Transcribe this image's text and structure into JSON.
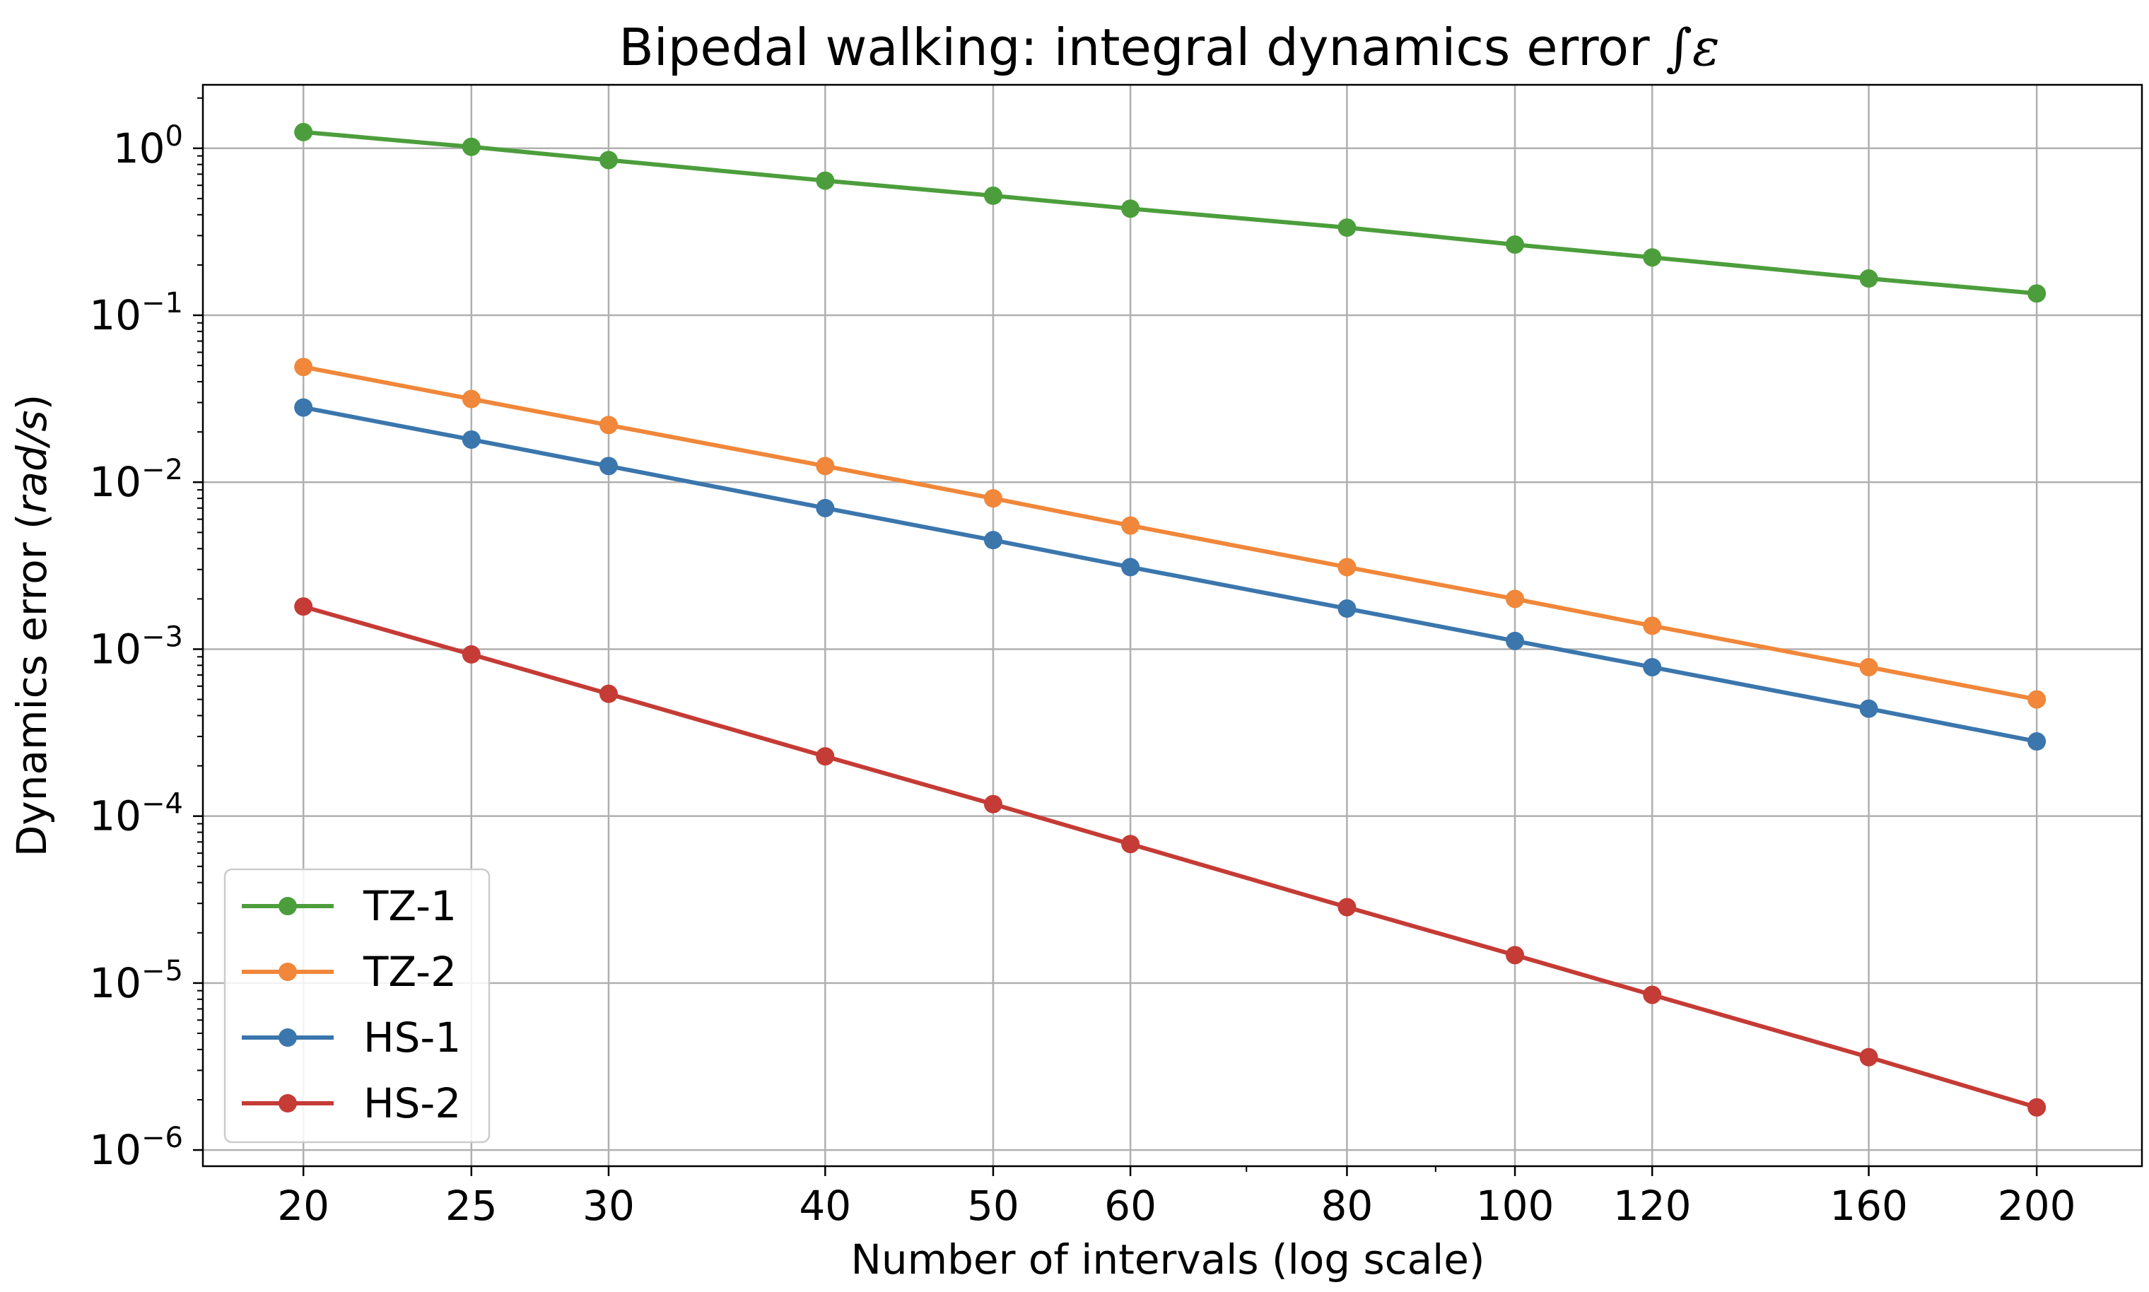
{
  "chart_data": {
    "type": "line",
    "title": "Bipedal walking: integral dynamics error ",
    "title_symbol": "∫ε",
    "xlabel": "Number of intervals (log scale)",
    "ylabel_prefix": "Dynamics error (",
    "ylabel_unit": "rad/s",
    "ylabel_suffix": ")",
    "xscale": "log",
    "yscale": "log",
    "xlim": [
      17.5,
      230
    ],
    "ylim": [
      8e-07,
      2.4
    ],
    "grid": true,
    "legend_position": "lower-left",
    "x": [
      20,
      25,
      30,
      40,
      50,
      60,
      80,
      100,
      120,
      160,
      200
    ],
    "x_tick_labels": [
      "20",
      "25",
      "30",
      "40",
      "50",
      "60",
      "80",
      "100",
      "120",
      "160",
      "200"
    ],
    "y_ticks": [
      {
        "value": 1,
        "base": "10",
        "exp": "0"
      },
      {
        "value": 0.1,
        "base": "10",
        "exp": "−1"
      },
      {
        "value": 0.01,
        "base": "10",
        "exp": "−2"
      },
      {
        "value": 0.001,
        "base": "10",
        "exp": "−3"
      },
      {
        "value": 0.0001,
        "base": "10",
        "exp": "−4"
      },
      {
        "value": 1e-05,
        "base": "10",
        "exp": "−5"
      },
      {
        "value": 1e-06,
        "base": "10",
        "exp": "−6"
      }
    ],
    "series": [
      {
        "name": "TZ-1",
        "color": "#4c9e3c",
        "values": [
          1.25,
          1.02,
          0.85,
          0.64,
          0.52,
          0.435,
          0.335,
          0.265,
          0.222,
          0.166,
          0.135
        ]
      },
      {
        "name": "TZ-2",
        "color": "#f0873a",
        "values": [
          0.049,
          0.0315,
          0.022,
          0.0125,
          0.008,
          0.0055,
          0.0031,
          0.002,
          0.00138,
          0.00078,
          0.0005
        ]
      },
      {
        "name": "HS-1",
        "color": "#3b76ad",
        "values": [
          0.028,
          0.018,
          0.0125,
          0.007,
          0.0045,
          0.0031,
          0.00175,
          0.00112,
          0.00078,
          0.00044,
          0.00028
        ]
      },
      {
        "name": "HS-2",
        "color": "#c53b35",
        "values": [
          0.0018,
          0.00093,
          0.00054,
          0.000228,
          0.000118,
          6.8e-05,
          2.85e-05,
          1.47e-05,
          8.5e-06,
          3.6e-06,
          1.8e-06
        ]
      }
    ]
  }
}
